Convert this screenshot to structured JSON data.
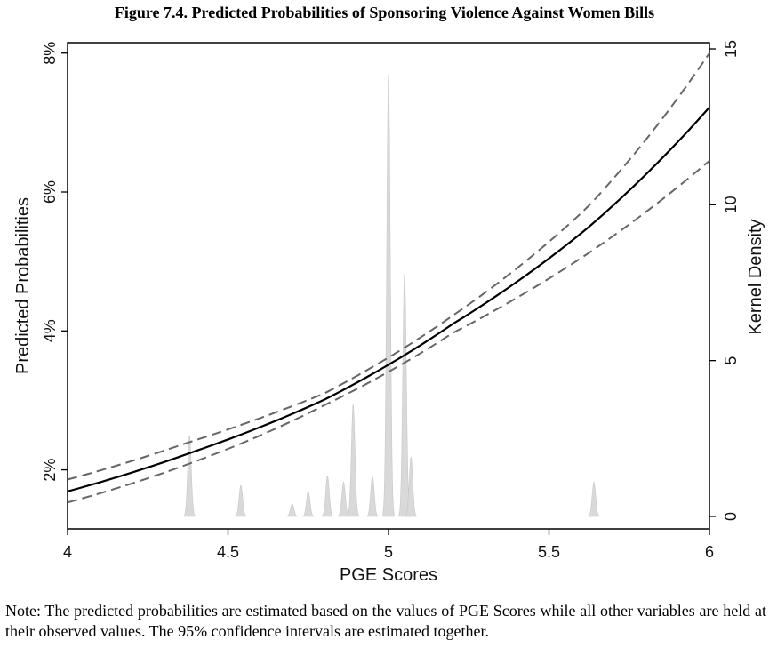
{
  "title": "Figure 7.4. Predicted Probabilities of Sponsoring Violence Against Women Bills",
  "note": "Note: The predicted probabilities are estimated based on the values of PGE Scores while all other variables are held at their observed values. The 95% confidence intervals are estimated together.",
  "chart_data": {
    "type": "line",
    "xlabel": "PGE Scores",
    "ylabel": "Predicted Probabilities",
    "y2label": "Kernel Density",
    "xlim": [
      4,
      6
    ],
    "ylim": [
      0.0115,
      0.0815
    ],
    "y2lim": [
      -0.4,
      15.2
    ],
    "xticks": [
      4,
      4.5,
      5,
      5.5,
      6
    ],
    "xtick_labels": [
      "4",
      "4.5",
      "5",
      "5.5",
      "6"
    ],
    "yticks": [
      0.02,
      0.04,
      0.06,
      0.08
    ],
    "ytick_labels": [
      "2%",
      "4%",
      "6%",
      "8%"
    ],
    "y2ticks": [
      0,
      5,
      10,
      15
    ],
    "y2tick_labels": [
      "0",
      "5",
      "10",
      "15"
    ],
    "grid": false,
    "series": [
      {
        "role": "estimate",
        "style": "solid",
        "color": "#000000",
        "x": [
          4.0,
          4.38,
          4.8,
          5.2,
          5.62,
          6.0
        ],
        "y": [
          0.0169,
          0.0224,
          0.0301,
          0.041,
          0.0548,
          0.0722
        ]
      },
      {
        "role": "upper",
        "style": "dashed",
        "color": "#666666",
        "x": [
          4.0,
          4.38,
          4.8,
          5.2,
          5.62,
          6.0
        ],
        "y": [
          0.0186,
          0.024,
          0.031,
          0.0422,
          0.0578,
          0.08
        ]
      },
      {
        "role": "lower",
        "style": "dashed",
        "color": "#666666",
        "x": [
          4.0,
          4.38,
          4.8,
          5.2,
          5.62,
          6.0
        ],
        "y": [
          0.0153,
          0.0209,
          0.0293,
          0.0397,
          0.0511,
          0.0645
        ]
      }
    ],
    "density": {
      "axis": "right",
      "color": "#d9d9d9",
      "bandwidth": 0.0055,
      "peaks": [
        {
          "x": 4.38,
          "height": 2.6
        },
        {
          "x": 4.54,
          "height": 1.0
        },
        {
          "x": 4.7,
          "height": 0.4
        },
        {
          "x": 4.75,
          "height": 0.8
        },
        {
          "x": 4.81,
          "height": 1.3
        },
        {
          "x": 4.86,
          "height": 1.1
        },
        {
          "x": 4.89,
          "height": 3.6
        },
        {
          "x": 4.95,
          "height": 1.3
        },
        {
          "x": 5.0,
          "height": 14.2
        },
        {
          "x": 5.05,
          "height": 7.8
        },
        {
          "x": 5.07,
          "height": 1.9
        },
        {
          "x": 5.64,
          "height": 1.1
        }
      ]
    }
  }
}
